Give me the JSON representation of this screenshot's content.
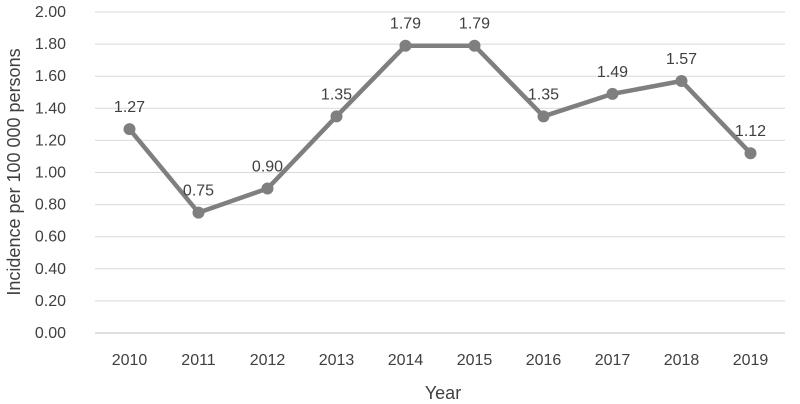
{
  "chart_data": {
    "type": "line",
    "title": "",
    "xlabel": "Year",
    "ylabel": "Incidence per 100 000 persons",
    "categories": [
      "2010",
      "2011",
      "2012",
      "2013",
      "2014",
      "2015",
      "2016",
      "2017",
      "2018",
      "2019"
    ],
    "series": [
      {
        "values": [
          1.27,
          0.75,
          0.9,
          1.35,
          1.79,
          1.79,
          1.35,
          1.49,
          1.57,
          1.12
        ],
        "data_labels": [
          "1.27",
          "0.75",
          "0.90",
          "1.35",
          "1.79",
          "1.79",
          "1.35",
          "1.49",
          "1.57",
          "1.12"
        ],
        "color": "#7f7f7f"
      }
    ],
    "yticks": [
      "0.00",
      "0.20",
      "0.40",
      "0.60",
      "0.80",
      "1.00",
      "1.20",
      "1.40",
      "1.60",
      "1.80",
      "2.00"
    ],
    "ylim": [
      0,
      2.0
    ],
    "grid": true,
    "legend": "none"
  }
}
